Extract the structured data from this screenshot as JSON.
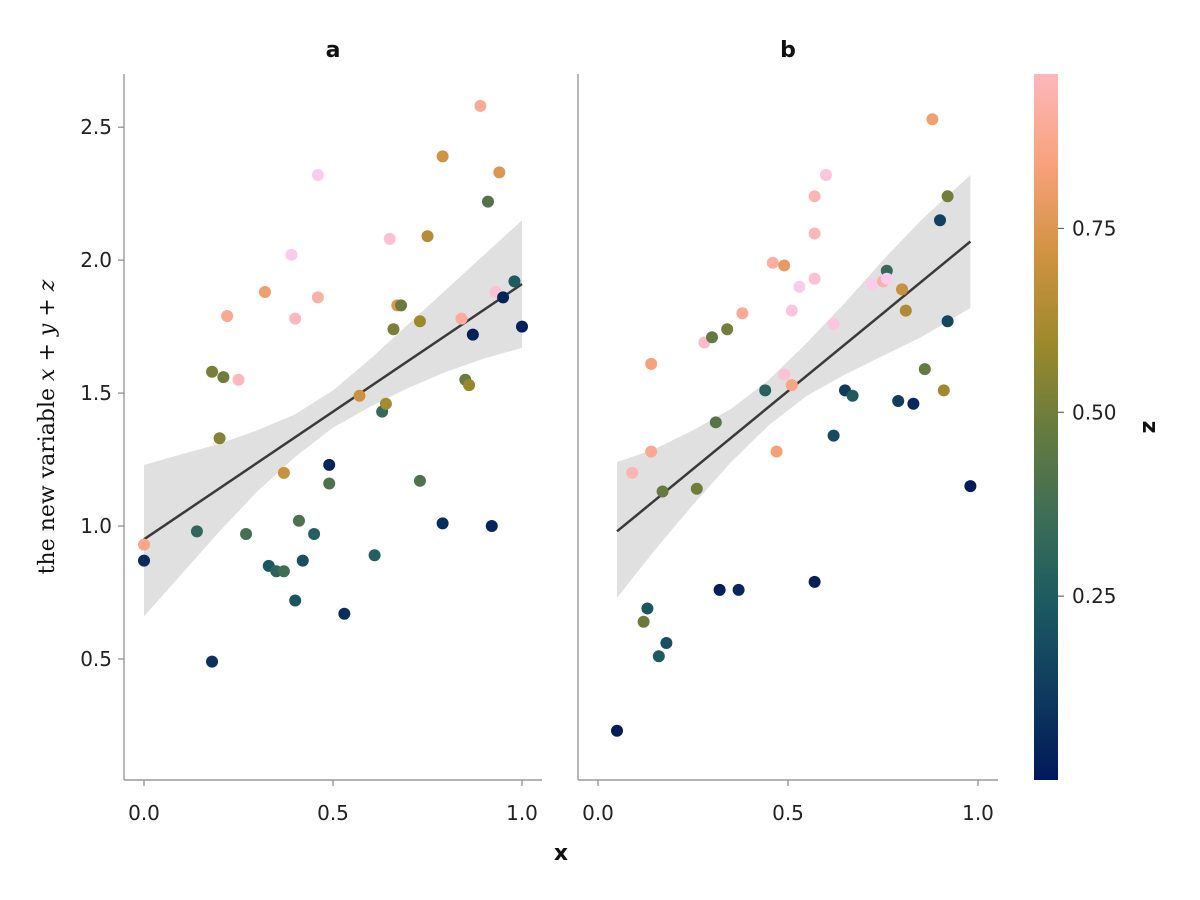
{
  "chart_data": {
    "type": "scatter",
    "x_label": "x",
    "y_label_text": "the new variable ",
    "y_label_math": "x + y + z",
    "colorbar_label": "z",
    "xlim": [
      -0.05,
      1.05
    ],
    "ylim": [
      0.12,
      2.7
    ],
    "x_ticks": [
      "0.0",
      "0.5",
      "1.0"
    ],
    "x_tick_values": [
      0,
      0.5,
      1
    ],
    "y_ticks": [
      "0.5",
      "1.0",
      "1.5",
      "2.0",
      "2.5"
    ],
    "y_tick_values": [
      0.5,
      1.0,
      1.5,
      2.0,
      2.5
    ],
    "colorbar_range": [
      0,
      0.96
    ],
    "colorbar_ticks": [
      "0.25",
      "0.50",
      "0.75"
    ],
    "colorbar_tick_values": [
      0.25,
      0.5,
      0.75
    ],
    "colormap": "batlow",
    "regression_line_color": "#3a3a3a",
    "confidence_band_color": "#e0e0e0",
    "panels": [
      {
        "title": "a",
        "fit": {
          "x": [
            0.0,
            1.0
          ],
          "y": [
            0.95,
            1.91
          ]
        },
        "band": {
          "x": [
            0.0,
            0.1,
            0.2,
            0.3,
            0.4,
            0.5,
            0.6,
            0.7,
            0.8,
            0.9,
            1.0
          ],
          "lower": [
            0.66,
            0.82,
            0.98,
            1.13,
            1.26,
            1.37,
            1.45,
            1.52,
            1.58,
            1.63,
            1.67
          ],
          "upper": [
            1.23,
            1.27,
            1.31,
            1.36,
            1.42,
            1.51,
            1.63,
            1.76,
            1.89,
            2.02,
            2.15
          ]
        },
        "points": [
          {
            "x": 0.0,
            "y": 0.93,
            "z": 0.77
          },
          {
            "x": 0.0,
            "y": 0.87,
            "z": 0.06
          },
          {
            "x": 0.14,
            "y": 0.98,
            "z": 0.28
          },
          {
            "x": 0.18,
            "y": 1.58,
            "z": 0.46
          },
          {
            "x": 0.18,
            "y": 0.49,
            "z": 0.08
          },
          {
            "x": 0.2,
            "y": 1.33,
            "z": 0.48
          },
          {
            "x": 0.21,
            "y": 1.56,
            "z": 0.44
          },
          {
            "x": 0.22,
            "y": 1.79,
            "z": 0.78
          },
          {
            "x": 0.25,
            "y": 1.55,
            "z": 0.86
          },
          {
            "x": 0.27,
            "y": 0.97,
            "z": 0.34
          },
          {
            "x": 0.32,
            "y": 1.88,
            "z": 0.72
          },
          {
            "x": 0.33,
            "y": 0.85,
            "z": 0.2
          },
          {
            "x": 0.35,
            "y": 0.83,
            "z": 0.27
          },
          {
            "x": 0.37,
            "y": 0.83,
            "z": 0.33
          },
          {
            "x": 0.37,
            "y": 1.2,
            "z": 0.62
          },
          {
            "x": 0.39,
            "y": 2.02,
            "z": 0.95
          },
          {
            "x": 0.4,
            "y": 1.78,
            "z": 0.86
          },
          {
            "x": 0.4,
            "y": 0.72,
            "z": 0.2
          },
          {
            "x": 0.41,
            "y": 1.02,
            "z": 0.36
          },
          {
            "x": 0.42,
            "y": 0.87,
            "z": 0.18
          },
          {
            "x": 0.45,
            "y": 0.97,
            "z": 0.24
          },
          {
            "x": 0.46,
            "y": 2.32,
            "z": 0.95
          },
          {
            "x": 0.46,
            "y": 1.86,
            "z": 0.82
          },
          {
            "x": 0.49,
            "y": 1.23,
            "z": 0.04
          },
          {
            "x": 0.49,
            "y": 1.16,
            "z": 0.36
          },
          {
            "x": 0.53,
            "y": 0.67,
            "z": 0.07
          },
          {
            "x": 0.57,
            "y": 1.49,
            "z": 0.63
          },
          {
            "x": 0.61,
            "y": 0.89,
            "z": 0.24
          },
          {
            "x": 0.63,
            "y": 1.43,
            "z": 0.3
          },
          {
            "x": 0.64,
            "y": 1.46,
            "z": 0.55
          },
          {
            "x": 0.65,
            "y": 2.08,
            "z": 0.9
          },
          {
            "x": 0.66,
            "y": 1.74,
            "z": 0.46
          },
          {
            "x": 0.67,
            "y": 1.83,
            "z": 0.67
          },
          {
            "x": 0.68,
            "y": 1.83,
            "z": 0.43
          },
          {
            "x": 0.73,
            "y": 1.17,
            "z": 0.36
          },
          {
            "x": 0.73,
            "y": 1.77,
            "z": 0.53
          },
          {
            "x": 0.75,
            "y": 2.09,
            "z": 0.58
          },
          {
            "x": 0.79,
            "y": 2.39,
            "z": 0.64
          },
          {
            "x": 0.79,
            "y": 1.01,
            "z": 0.07
          },
          {
            "x": 0.84,
            "y": 1.78,
            "z": 0.8
          },
          {
            "x": 0.85,
            "y": 1.55,
            "z": 0.43
          },
          {
            "x": 0.86,
            "y": 1.53,
            "z": 0.52
          },
          {
            "x": 0.87,
            "y": 1.72,
            "z": 0.02
          },
          {
            "x": 0.89,
            "y": 2.58,
            "z": 0.79
          },
          {
            "x": 0.91,
            "y": 2.22,
            "z": 0.37
          },
          {
            "x": 0.92,
            "y": 1.0,
            "z": 0.04
          },
          {
            "x": 0.93,
            "y": 1.88,
            "z": 0.9
          },
          {
            "x": 0.94,
            "y": 2.33,
            "z": 0.67
          },
          {
            "x": 0.95,
            "y": 1.86,
            "z": 0.03
          },
          {
            "x": 0.98,
            "y": 1.92,
            "z": 0.22
          },
          {
            "x": 1.0,
            "y": 1.75,
            "z": 0.02
          }
        ]
      },
      {
        "title": "b",
        "fit": {
          "x": [
            0.05,
            0.98
          ],
          "y": [
            0.98,
            2.07
          ]
        },
        "band": {
          "x": [
            0.05,
            0.15,
            0.25,
            0.35,
            0.45,
            0.55,
            0.65,
            0.75,
            0.85,
            0.98
          ],
          "lower": [
            0.73,
            0.91,
            1.08,
            1.24,
            1.38,
            1.49,
            1.57,
            1.64,
            1.71,
            1.82
          ],
          "upper": [
            1.24,
            1.29,
            1.36,
            1.44,
            1.55,
            1.69,
            1.84,
            2.0,
            2.15,
            2.32
          ]
        },
        "points": [
          {
            "x": 0.05,
            "y": 0.23,
            "z": 0.01
          },
          {
            "x": 0.09,
            "y": 1.2,
            "z": 0.84
          },
          {
            "x": 0.12,
            "y": 0.64,
            "z": 0.43
          },
          {
            "x": 0.13,
            "y": 0.69,
            "z": 0.2
          },
          {
            "x": 0.14,
            "y": 1.61,
            "z": 0.75
          },
          {
            "x": 0.14,
            "y": 1.28,
            "z": 0.78
          },
          {
            "x": 0.16,
            "y": 0.51,
            "z": 0.22
          },
          {
            "x": 0.17,
            "y": 1.13,
            "z": 0.42
          },
          {
            "x": 0.18,
            "y": 0.56,
            "z": 0.18
          },
          {
            "x": 0.26,
            "y": 1.14,
            "z": 0.44
          },
          {
            "x": 0.28,
            "y": 1.69,
            "z": 0.88
          },
          {
            "x": 0.3,
            "y": 1.71,
            "z": 0.41
          },
          {
            "x": 0.31,
            "y": 1.39,
            "z": 0.38
          },
          {
            "x": 0.32,
            "y": 0.76,
            "z": 0.02
          },
          {
            "x": 0.34,
            "y": 1.74,
            "z": 0.45
          },
          {
            "x": 0.37,
            "y": 0.76,
            "z": 0.05
          },
          {
            "x": 0.38,
            "y": 1.8,
            "z": 0.79
          },
          {
            "x": 0.44,
            "y": 1.51,
            "z": 0.25
          },
          {
            "x": 0.46,
            "y": 1.99,
            "z": 0.81
          },
          {
            "x": 0.47,
            "y": 1.28,
            "z": 0.74
          },
          {
            "x": 0.49,
            "y": 1.57,
            "z": 0.9
          },
          {
            "x": 0.49,
            "y": 1.98,
            "z": 0.7
          },
          {
            "x": 0.51,
            "y": 1.53,
            "z": 0.76
          },
          {
            "x": 0.51,
            "y": 1.81,
            "z": 0.92
          },
          {
            "x": 0.53,
            "y": 1.9,
            "z": 0.95
          },
          {
            "x": 0.57,
            "y": 2.24,
            "z": 0.84
          },
          {
            "x": 0.57,
            "y": 2.1,
            "z": 0.85
          },
          {
            "x": 0.57,
            "y": 1.93,
            "z": 0.9
          },
          {
            "x": 0.57,
            "y": 0.79,
            "z": 0.02
          },
          {
            "x": 0.6,
            "y": 2.32,
            "z": 0.92
          },
          {
            "x": 0.62,
            "y": 1.76,
            "z": 0.92
          },
          {
            "x": 0.62,
            "y": 1.34,
            "z": 0.16
          },
          {
            "x": 0.65,
            "y": 1.51,
            "z": 0.11
          },
          {
            "x": 0.67,
            "y": 1.49,
            "z": 0.22
          },
          {
            "x": 0.72,
            "y": 1.91,
            "z": 0.95
          },
          {
            "x": 0.75,
            "y": 1.92,
            "z": 0.82
          },
          {
            "x": 0.76,
            "y": 1.96,
            "z": 0.3
          },
          {
            "x": 0.76,
            "y": 1.93,
            "z": 0.95
          },
          {
            "x": 0.79,
            "y": 1.47,
            "z": 0.12
          },
          {
            "x": 0.8,
            "y": 1.89,
            "z": 0.62
          },
          {
            "x": 0.81,
            "y": 1.81,
            "z": 0.57
          },
          {
            "x": 0.83,
            "y": 1.46,
            "z": 0.05
          },
          {
            "x": 0.86,
            "y": 1.59,
            "z": 0.42
          },
          {
            "x": 0.88,
            "y": 2.53,
            "z": 0.73
          },
          {
            "x": 0.9,
            "y": 2.15,
            "z": 0.13
          },
          {
            "x": 0.91,
            "y": 1.51,
            "z": 0.54
          },
          {
            "x": 0.92,
            "y": 2.24,
            "z": 0.45
          },
          {
            "x": 0.92,
            "y": 1.77,
            "z": 0.15
          },
          {
            "x": 0.98,
            "y": 1.15,
            "z": 0.01
          }
        ]
      }
    ]
  }
}
